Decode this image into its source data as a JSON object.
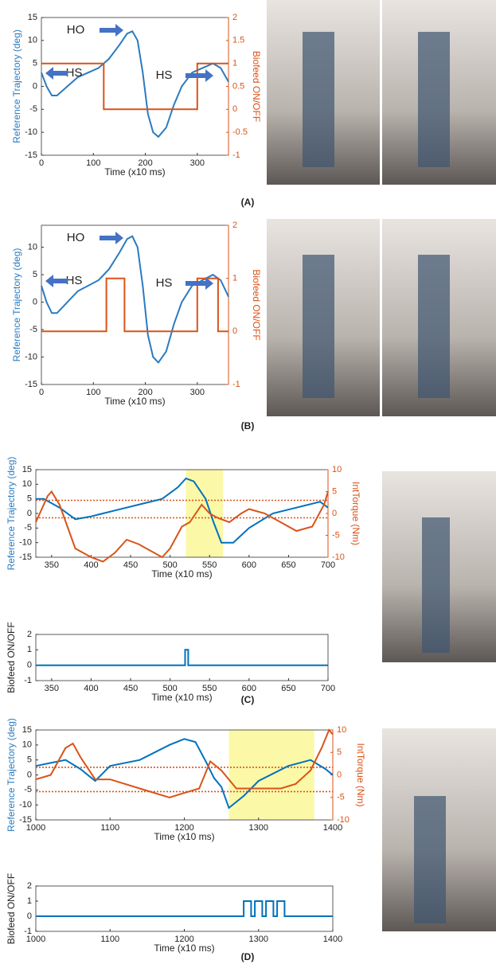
{
  "chart_data": [
    {
      "type": "line",
      "panel_label": "(A)",
      "xlabel": "Time (x10 ms)",
      "ylabel": "Reference Trajectory (deg)",
      "y2label": "Biofeed ON/OFF",
      "annotations": [
        "HO",
        "HS",
        "HS"
      ],
      "xlim": [
        0,
        360
      ],
      "xticks": [
        0,
        100,
        200,
        300
      ],
      "ylim": [
        -15,
        15
      ],
      "yticks": [
        -15,
        -10,
        -5,
        0,
        5,
        10,
        15
      ],
      "y2lim": [
        -1,
        2
      ],
      "y2ticks": [
        -1,
        -0.5,
        0,
        0.5,
        1,
        1.5,
        2
      ],
      "y2color": "#d95319",
      "series": [
        {
          "color": "#2b7bbf",
          "x": [
            0,
            10,
            20,
            30,
            50,
            70,
            90,
            110,
            130,
            150,
            165,
            175,
            185,
            195,
            205,
            215,
            225,
            240,
            255,
            270,
            290,
            310,
            330,
            345,
            360
          ],
          "values": [
            3,
            0,
            -2,
            -2,
            0,
            2,
            3,
            4,
            6,
            9,
            11.5,
            12,
            10,
            3,
            -6,
            -10,
            -11,
            -9,
            -4,
            0,
            3,
            4,
            5,
            4,
            1
          ]
        },
        {
          "color": "#d95319",
          "axis": "y2",
          "x": [
            0,
            120,
            120,
            300,
            300,
            360
          ],
          "values": [
            1,
            1,
            0,
            0,
            1,
            1
          ]
        }
      ]
    },
    {
      "type": "line",
      "panel_label": "(B)",
      "xlabel": "Time (x10 ms)",
      "ylabel": "Reference Trajectory (deg)",
      "y2label": "Biofeed ON/OFF",
      "annotations": [
        "HO",
        "HS",
        "HS"
      ],
      "xlim": [
        0,
        360
      ],
      "xticks": [
        0,
        100,
        200,
        300
      ],
      "ylim": [
        -15,
        14
      ],
      "yticks": [
        -15,
        -10,
        -5,
        0,
        5,
        10
      ],
      "y2lim": [
        -1,
        2
      ],
      "y2ticks": [
        -1,
        0,
        1,
        2
      ],
      "y2color": "#d95319",
      "series": [
        {
          "color": "#2b7bbf",
          "x": [
            0,
            10,
            20,
            30,
            50,
            70,
            90,
            110,
            130,
            150,
            165,
            175,
            185,
            195,
            205,
            215,
            225,
            240,
            255,
            270,
            290,
            310,
            330,
            345,
            360
          ],
          "values": [
            3,
            0,
            -2,
            -2,
            0,
            2,
            3,
            4,
            6,
            9,
            11.5,
            12,
            10,
            3,
            -6,
            -10,
            -11,
            -9,
            -4,
            0,
            3,
            4,
            5,
            4,
            1
          ]
        },
        {
          "color": "#d95319",
          "axis": "y2",
          "x": [
            0,
            125,
            125,
            160,
            160,
            300,
            300,
            340,
            340,
            360
          ],
          "values": [
            0,
            0,
            1,
            1,
            0,
            0,
            1,
            1,
            0,
            0
          ]
        }
      ]
    },
    {
      "type": "line",
      "panel_label": "(C)",
      "xlabel": "Time (x10 ms)",
      "ylabel": "Reference Trajectory (deg)",
      "y2label": "IntTorque (Nm)",
      "xlim": [
        330,
        700
      ],
      "xticks": [
        350,
        400,
        450,
        500,
        550,
        600,
        650,
        700
      ],
      "ylim": [
        -15,
        15
      ],
      "yticks": [
        -15,
        -10,
        -5,
        0,
        5,
        10,
        15
      ],
      "y2lim": [
        -10,
        10
      ],
      "y2ticks": [
        -10,
        -5,
        0,
        5,
        10
      ],
      "y2color": "#d95319",
      "highlight": [
        520,
        567
      ],
      "hlines": [
        {
          "value": 3,
          "axis": "y2",
          "color": "#d95319"
        },
        {
          "value": -1,
          "axis": "y2",
          "color": "#d95319"
        }
      ],
      "series": [
        {
          "color": "#0072bd",
          "x": [
            330,
            340,
            360,
            380,
            400,
            430,
            460,
            490,
            510,
            520,
            530,
            545,
            555,
            565,
            580,
            600,
            630,
            660,
            690,
            700
          ],
          "values": [
            5,
            5,
            2,
            -2,
            -1,
            1,
            3,
            5,
            9,
            12,
            11,
            5,
            -3,
            -10,
            -10,
            -5,
            0,
            2,
            4,
            2
          ]
        },
        {
          "color": "#d95319",
          "axis": "y2",
          "x": [
            330,
            345,
            350,
            360,
            370,
            380,
            400,
            415,
            430,
            445,
            460,
            480,
            490,
            500,
            515,
            525,
            540,
            550,
            560,
            575,
            590,
            600,
            620,
            640,
            660,
            680,
            695,
            700
          ],
          "values": [
            -2,
            4,
            5,
            2,
            -3,
            -8,
            -10,
            -11,
            -9,
            -6,
            -7,
            -9,
            -10,
            -8,
            -3,
            -2,
            2,
            0,
            -1,
            -2,
            0,
            1,
            0,
            -2,
            -4,
            -3,
            2,
            5
          ]
        }
      ]
    },
    {
      "type": "line",
      "xlabel": "Time (x10 ms)",
      "ylabel": "Biofeed ON/OFF",
      "xlim": [
        330,
        700
      ],
      "xticks": [
        350,
        400,
        450,
        500,
        550,
        600,
        650,
        700
      ],
      "ylim": [
        -1,
        2
      ],
      "yticks": [
        -1,
        0,
        1,
        2
      ],
      "series": [
        {
          "color": "#0072bd",
          "x": [
            330,
            519,
            519,
            523,
            523,
            700
          ],
          "values": [
            0,
            0,
            1,
            1,
            0,
            0
          ]
        }
      ]
    },
    {
      "type": "line",
      "panel_label": "(D)",
      "xlabel": "Time (x10 ms)",
      "ylabel": "Reference Trajectory (deg)",
      "y2label": "IntTorque (Nm)",
      "xlim": [
        1000,
        1400
      ],
      "xticks": [
        1000,
        1100,
        1200,
        1300,
        1400
      ],
      "ylim": [
        -15,
        15
      ],
      "yticks": [
        -15,
        -10,
        -5,
        0,
        5,
        10,
        15
      ],
      "y2lim": [
        -10,
        10
      ],
      "y2ticks": [
        -10,
        -5,
        0,
        5,
        10
      ],
      "y2color": "#d95319",
      "highlight": [
        1260,
        1375
      ],
      "hlines": [
        {
          "value": 1.7,
          "axis": "y2",
          "color": "#d95319"
        },
        {
          "value": -3.7,
          "axis": "y2",
          "color": "#d95319"
        }
      ],
      "series": [
        {
          "color": "#0072bd",
          "x": [
            1000,
            1020,
            1040,
            1060,
            1080,
            1100,
            1140,
            1180,
            1200,
            1215,
            1230,
            1240,
            1250,
            1260,
            1280,
            1300,
            1340,
            1370,
            1390,
            1400
          ],
          "values": [
            3,
            4,
            5,
            2,
            -2,
            3,
            5,
            10,
            12,
            11,
            4,
            -1,
            -4,
            -11,
            -7,
            -2,
            3,
            5,
            2,
            0
          ]
        },
        {
          "color": "#d95319",
          "axis": "y2",
          "x": [
            1000,
            1020,
            1040,
            1050,
            1060,
            1080,
            1100,
            1140,
            1180,
            1200,
            1220,
            1235,
            1250,
            1270,
            1300,
            1330,
            1350,
            1370,
            1385,
            1395,
            1400
          ],
          "values": [
            -1,
            0,
            6,
            7,
            4,
            -1,
            -1,
            -3,
            -5,
            -4,
            -3,
            3,
            1,
            -3,
            -3,
            -3,
            -2,
            1,
            6,
            10,
            9
          ]
        }
      ]
    },
    {
      "type": "line",
      "xlabel": "Time (x10 ms)",
      "ylabel": "Biofeed ON/OFF",
      "xlim": [
        1000,
        1400
      ],
      "xticks": [
        1000,
        1100,
        1200,
        1300,
        1400
      ],
      "ylim": [
        -1,
        2
      ],
      "yticks": [
        -1,
        0,
        1,
        2
      ],
      "series": [
        {
          "color": "#0072bd",
          "x": [
            1000,
            1280,
            1280,
            1290,
            1290,
            1295,
            1295,
            1305,
            1305,
            1310,
            1310,
            1320,
            1320,
            1325,
            1325,
            1335,
            1335,
            1400
          ],
          "values": [
            0,
            0,
            1,
            1,
            0,
            0,
            1,
            1,
            0,
            0,
            1,
            1,
            0,
            0,
            1,
            1,
            0,
            0
          ]
        }
      ]
    }
  ]
}
